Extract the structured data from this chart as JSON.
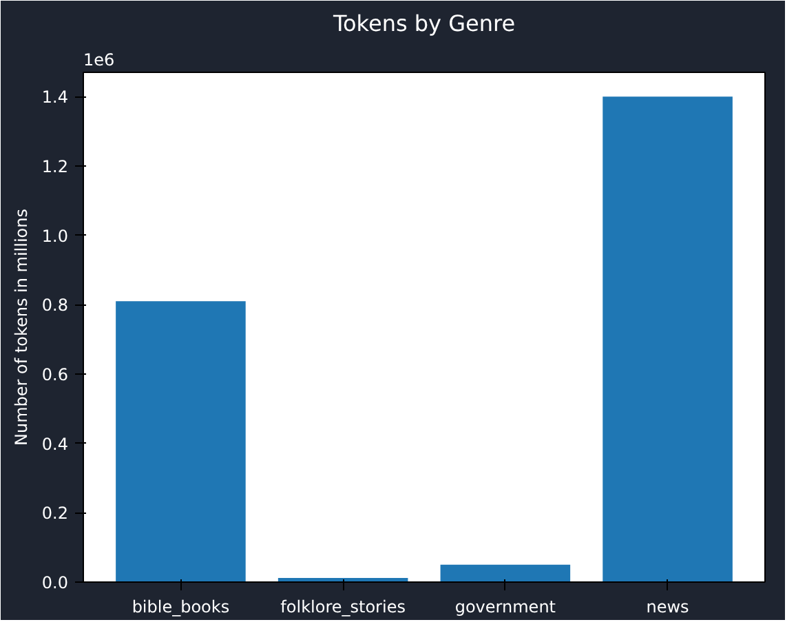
{
  "chart_data": {
    "type": "bar",
    "title": "Tokens by Genre",
    "ylabel": "Number of tokens in millions",
    "categories": [
      "bible_books",
      "folklore_stories",
      "government",
      "news"
    ],
    "values": [
      0.81,
      0.012,
      0.05,
      1.4
    ],
    "color": "#1f77b4",
    "ylim": [
      0,
      1.47
    ],
    "yticks": [
      {
        "value": 0,
        "label": "0.0"
      },
      0.2,
      0.4,
      0.6,
      0.8,
      {
        "value": 1,
        "label": "1.0"
      },
      1.2,
      1.4
    ],
    "annotations": [
      "1e6"
    ],
    "grid": false
  }
}
